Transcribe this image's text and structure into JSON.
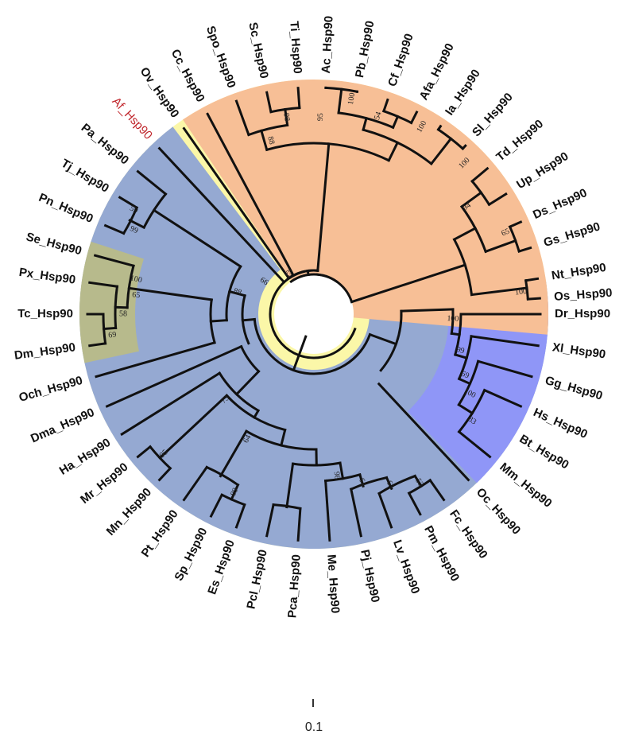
{
  "figure": {
    "type": "circular-phylogenetic-tree",
    "highlight_color": "#c0262c",
    "clade_colors": {
      "fungi_plants": "#f7bf96",
      "background": "#fbf7a8",
      "arthropods": "#95a9d2",
      "insects": "#b7ba8c",
      "vertebrates": "#8f96f7"
    }
  },
  "clades": [
    {
      "name": "fungi-plants-clade",
      "color": "#f7bf96"
    },
    {
      "name": "arthropod-clade",
      "color": "#95a9d2"
    },
    {
      "name": "insect-clade",
      "color": "#b7ba8c"
    },
    {
      "name": "vertebrate-clade",
      "color": "#8f96f7"
    }
  ],
  "leaves": [
    {
      "label": "Dr_Hsp90",
      "angle": 0
    },
    {
      "label": "Xl_Hsp90",
      "angle": 8
    },
    {
      "label": "Gg_Hsp90",
      "angle": 16
    },
    {
      "label": "Hs_Hsp90",
      "angle": 24
    },
    {
      "label": "Bt_Hsp90",
      "angle": 31
    },
    {
      "label": "Mm_Hsp90",
      "angle": 39
    },
    {
      "label": "Oc_Hsp90",
      "angle": 47
    },
    {
      "label": "Fc_Hsp90",
      "angle": 55
    },
    {
      "label": "Pm_Hsp90",
      "angle": 62
    },
    {
      "label": "Lv_Hsp90",
      "angle": 70
    },
    {
      "label": "Pj_Hsp90",
      "angle": 78
    },
    {
      "label": "Me_Hsp90",
      "angle": 86
    },
    {
      "label": "Pca_Hsp90",
      "angle": 94
    },
    {
      "label": "Pcl_Hsp90",
      "angle": 102
    },
    {
      "label": "Es_Hsp90",
      "angle": 110
    },
    {
      "label": "Sp_Hsp90",
      "angle": 117
    },
    {
      "label": "Pt_Hsp90",
      "angle": 125
    },
    {
      "label": "Mn_Hsp90",
      "angle": 133
    },
    {
      "label": "Mr_Hsp90",
      "angle": 141
    },
    {
      "label": "Ha_Hsp90",
      "angle": 148
    },
    {
      "label": "Dma_Hsp90",
      "angle": 156
    },
    {
      "label": "Och_Hsp90",
      "angle": 164
    },
    {
      "label": "Dm_Hsp90",
      "angle": 172
    },
    {
      "label": "Tc_Hsp90",
      "angle": 180
    },
    {
      "label": "Px_Hsp90",
      "angle": 188
    },
    {
      "label": "Se_Hsp90",
      "angle": 195
    },
    {
      "label": "Pn_Hsp90",
      "angle": 203
    },
    {
      "label": "Tj_Hsp90",
      "angle": 211
    },
    {
      "label": "Pa_Hsp90",
      "angle": 219
    },
    {
      "label": "Af_Hsp90",
      "angle": 227,
      "highlight": true
    },
    {
      "label": "Ov_Hsp90",
      "angle": 235
    },
    {
      "label": "Cc_Hsp90",
      "angle": 242
    },
    {
      "label": "Spo_Hsp90",
      "angle": 250
    },
    {
      "label": "Sc_Hsp90",
      "angle": 258
    },
    {
      "label": "Ti_Hsp90",
      "angle": 266
    },
    {
      "label": "Ac_Hsp90",
      "angle": 273
    },
    {
      "label": "Pb_Hsp90",
      "angle": 281
    },
    {
      "label": "Cf_Hsp90",
      "angle": 289
    },
    {
      "label": "Afa_Hsp90",
      "angle": 297
    },
    {
      "label": "Ia_Hsp90",
      "angle": 304
    },
    {
      "label": "Sl_Hsp90",
      "angle": 312
    },
    {
      "label": "Td_Hsp90",
      "angle": 320
    },
    {
      "label": "Up_Hsp90",
      "angle": 328
    },
    {
      "label": "Ds_Hsp90",
      "angle": 336
    },
    {
      "label": "Gs_Hsp90",
      "angle": 343
    },
    {
      "label": "Nt_Hsp90",
      "angle": 351
    },
    {
      "label": "Os_Hsp90",
      "angle": 356
    }
  ],
  "bootstrap": [
    {
      "value": "100",
      "angle": 2
    },
    {
      "value": "99",
      "angle": 14
    },
    {
      "value": "69",
      "angle": 22
    },
    {
      "value": "100",
      "angle": 27
    },
    {
      "value": "83",
      "angle": 34
    },
    {
      "value": "53",
      "angle": 58
    },
    {
      "value": "63",
      "angle": 66
    },
    {
      "value": "64",
      "angle": 74
    },
    {
      "value": "98",
      "angle": 82
    },
    {
      "value": "89",
      "angle": 114
    },
    {
      "value": "95",
      "angle": 137
    },
    {
      "value": "64",
      "angle": 118
    },
    {
      "value": "73",
      "angle": 136
    },
    {
      "value": "69",
      "angle": 174
    },
    {
      "value": "58",
      "angle": 180
    },
    {
      "value": "65",
      "angle": 186
    },
    {
      "value": "100",
      "angle": 191
    },
    {
      "value": "88",
      "angle": 196
    },
    {
      "value": "99",
      "angle": 205
    },
    {
      "value": "59",
      "angle": 210
    },
    {
      "value": "66",
      "angle": 213
    },
    {
      "value": "53",
      "angle": 236
    },
    {
      "value": "88",
      "angle": 256
    },
    {
      "value": "98",
      "angle": 262
    },
    {
      "value": "95",
      "angle": 272
    },
    {
      "value": "100",
      "angle": 280
    },
    {
      "value": "54",
      "angle": 288
    },
    {
      "value": "100",
      "angle": 300
    },
    {
      "value": "100",
      "angle": 315
    },
    {
      "value": "94",
      "angle": 325
    },
    {
      "value": "65",
      "angle": 337
    },
    {
      "value": "100",
      "angle": 354
    }
  ],
  "scale_bar": {
    "label": "0.1"
  }
}
